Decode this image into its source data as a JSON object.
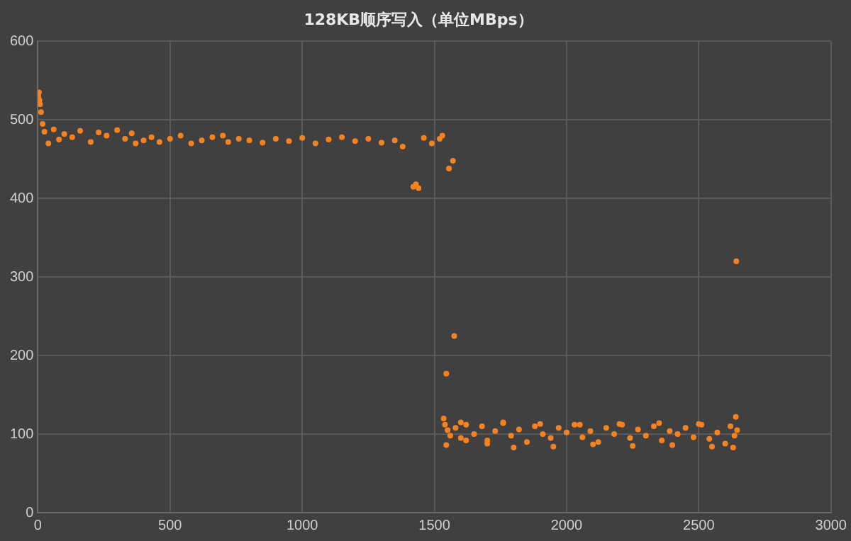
{
  "chart_data": {
    "type": "scatter",
    "title": "128KB顺序写入（单位MBps）",
    "xlim": [
      0,
      3000
    ],
    "xticks": [
      0,
      500,
      1000,
      1500,
      2000,
      2500,
      3000
    ],
    "ylim": [
      0,
      600
    ],
    "yticks": [
      0,
      100,
      200,
      300,
      400,
      500,
      600
    ],
    "grid": true,
    "marker": "circle",
    "series": [
      {
        "color": "#f58220",
        "x": [
          2,
          4,
          6,
          8,
          12,
          18,
          25,
          40,
          60,
          80,
          100,
          130,
          160,
          200,
          230,
          260,
          300,
          330,
          355,
          370,
          400,
          430,
          460,
          500,
          540,
          580,
          620,
          660,
          700,
          720,
          760,
          800,
          850,
          900,
          950,
          1000,
          1050,
          1100,
          1150,
          1200,
          1250,
          1300,
          1350,
          1380,
          1420,
          1430,
          1440,
          1460,
          1490,
          1520,
          1530,
          1545,
          1555,
          1570,
          1575,
          1535,
          1540,
          1550,
          1560,
          1580,
          1600,
          1620,
          1650,
          1680,
          1700,
          1730,
          1760,
          1790,
          1820,
          1850,
          1880,
          1910,
          1940,
          1970,
          2000,
          2030,
          2060,
          2090,
          2120,
          2150,
          2180,
          2210,
          2240,
          2270,
          2300,
          2330,
          2360,
          2390,
          2420,
          2450,
          2480,
          2510,
          2540,
          2570,
          2600,
          2620,
          2635,
          2640,
          2645,
          1545,
          1620,
          1700,
          1800,
          1950,
          2100,
          2250,
          2400,
          2550,
          2630,
          1600,
          1760,
          1900,
          2050,
          2200,
          2350,
          2500,
          2642
        ],
        "values": [
          530,
          535,
          525,
          520,
          510,
          495,
          485,
          470,
          488,
          475,
          482,
          478,
          486,
          472,
          484,
          480,
          487,
          476,
          483,
          470,
          474,
          478,
          472,
          476,
          480,
          470,
          474,
          478,
          480,
          472,
          476,
          474,
          471,
          476,
          473,
          477,
          470,
          475,
          478,
          473,
          476,
          471,
          474,
          466,
          415,
          418,
          413,
          477,
          470,
          476,
          480,
          177,
          438,
          448,
          225,
          120,
          112,
          105,
          98,
          108,
          95,
          112,
          100,
          110,
          92,
          104,
          115,
          98,
          106,
          90,
          110,
          100,
          95,
          108,
          102,
          112,
          96,
          104,
          90,
          108,
          100,
          112,
          95,
          106,
          98,
          110,
          92,
          104,
          100,
          108,
          96,
          112,
          94,
          102,
          88,
          110,
          98,
          122,
          105,
          86,
          92,
          88,
          83,
          84,
          87,
          85,
          86,
          84,
          83,
          115,
          114,
          113,
          112,
          113,
          114,
          113,
          320
        ]
      }
    ]
  }
}
